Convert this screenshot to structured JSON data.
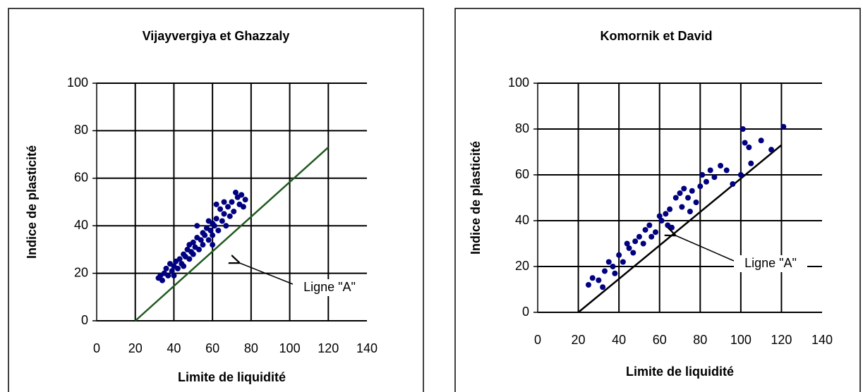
{
  "chart_data": [
    {
      "type": "scatter",
      "title": "Vijayvergiya et Ghazzaly",
      "xlabel": "Limite de liquidité",
      "ylabel": "Indice de plasticité",
      "xlim": [
        0,
        140
      ],
      "ylim": [
        0,
        100
      ],
      "xticks": [
        0,
        20,
        40,
        60,
        80,
        100,
        120,
        140
      ],
      "yticks": [
        0,
        20,
        40,
        60,
        80,
        100
      ],
      "grid": true,
      "series": [
        {
          "color": "#000080",
          "x": [
            32,
            33,
            34,
            35,
            36,
            37,
            38,
            39,
            40,
            40,
            41,
            42,
            43,
            44,
            45,
            45,
            46,
            47,
            48,
            48,
            49,
            50,
            50,
            51,
            52,
            53,
            54,
            55,
            55,
            56,
            57,
            58,
            59,
            60,
            60,
            61,
            62,
            63,
            64,
            65,
            66,
            67,
            68,
            69,
            70,
            71,
            72,
            73,
            74,
            75,
            76,
            77,
            62,
            58,
            66,
            52,
            60
          ],
          "y": [
            18,
            19,
            17,
            20,
            22,
            19,
            24,
            21,
            23,
            19,
            25,
            22,
            26,
            24,
            28,
            23,
            27,
            30,
            26,
            32,
            29,
            33,
            28,
            31,
            35,
            30,
            34,
            37,
            32,
            36,
            39,
            34,
            38,
            41,
            36,
            40,
            43,
            38,
            47,
            42,
            45,
            40,
            48,
            44,
            50,
            46,
            54,
            52,
            49,
            53,
            48,
            51,
            49,
            42,
            50,
            40,
            32
          ]
        }
      ],
      "lines": [
        {
          "color": "#1f5a1f",
          "x": [
            20,
            120
          ],
          "y": [
            0,
            73
          ]
        }
      ],
      "annotation": "Ligne \"A\""
    },
    {
      "type": "scatter",
      "title": "Komornik et David",
      "xlabel": "Limite de liquidité",
      "ylabel": "Indice de plasticité",
      "xlim": [
        0,
        140
      ],
      "ylim": [
        0,
        100
      ],
      "xticks": [
        0,
        20,
        40,
        60,
        80,
        100,
        120,
        140
      ],
      "yticks": [
        0,
        20,
        40,
        60,
        80,
        100
      ],
      "grid": true,
      "series": [
        {
          "color": "#000080",
          "x": [
            25,
            27,
            30,
            32,
            33,
            35,
            37,
            38,
            40,
            42,
            44,
            45,
            47,
            48,
            50,
            52,
            53,
            55,
            56,
            58,
            60,
            61,
            63,
            65,
            66,
            68,
            70,
            71,
            72,
            74,
            76,
            78,
            80,
            81,
            83,
            85,
            87,
            90,
            93,
            96,
            100,
            101,
            102,
            104,
            105,
            110,
            115,
            121,
            75,
            64
          ],
          "y": [
            12,
            15,
            14,
            11,
            18,
            22,
            20,
            17,
            25,
            22,
            30,
            28,
            26,
            31,
            33,
            30,
            36,
            38,
            33,
            35,
            42,
            40,
            43,
            45,
            37,
            50,
            52,
            46,
            54,
            50,
            53,
            48,
            55,
            60,
            57,
            62,
            59,
            64,
            62,
            56,
            60,
            80,
            74,
            72,
            65,
            75,
            71,
            81,
            44,
            38
          ]
        }
      ],
      "lines": [
        {
          "color": "#000000",
          "x": [
            20,
            120
          ],
          "y": [
            0,
            73
          ]
        }
      ],
      "annotation": "Ligne \"A\""
    }
  ]
}
